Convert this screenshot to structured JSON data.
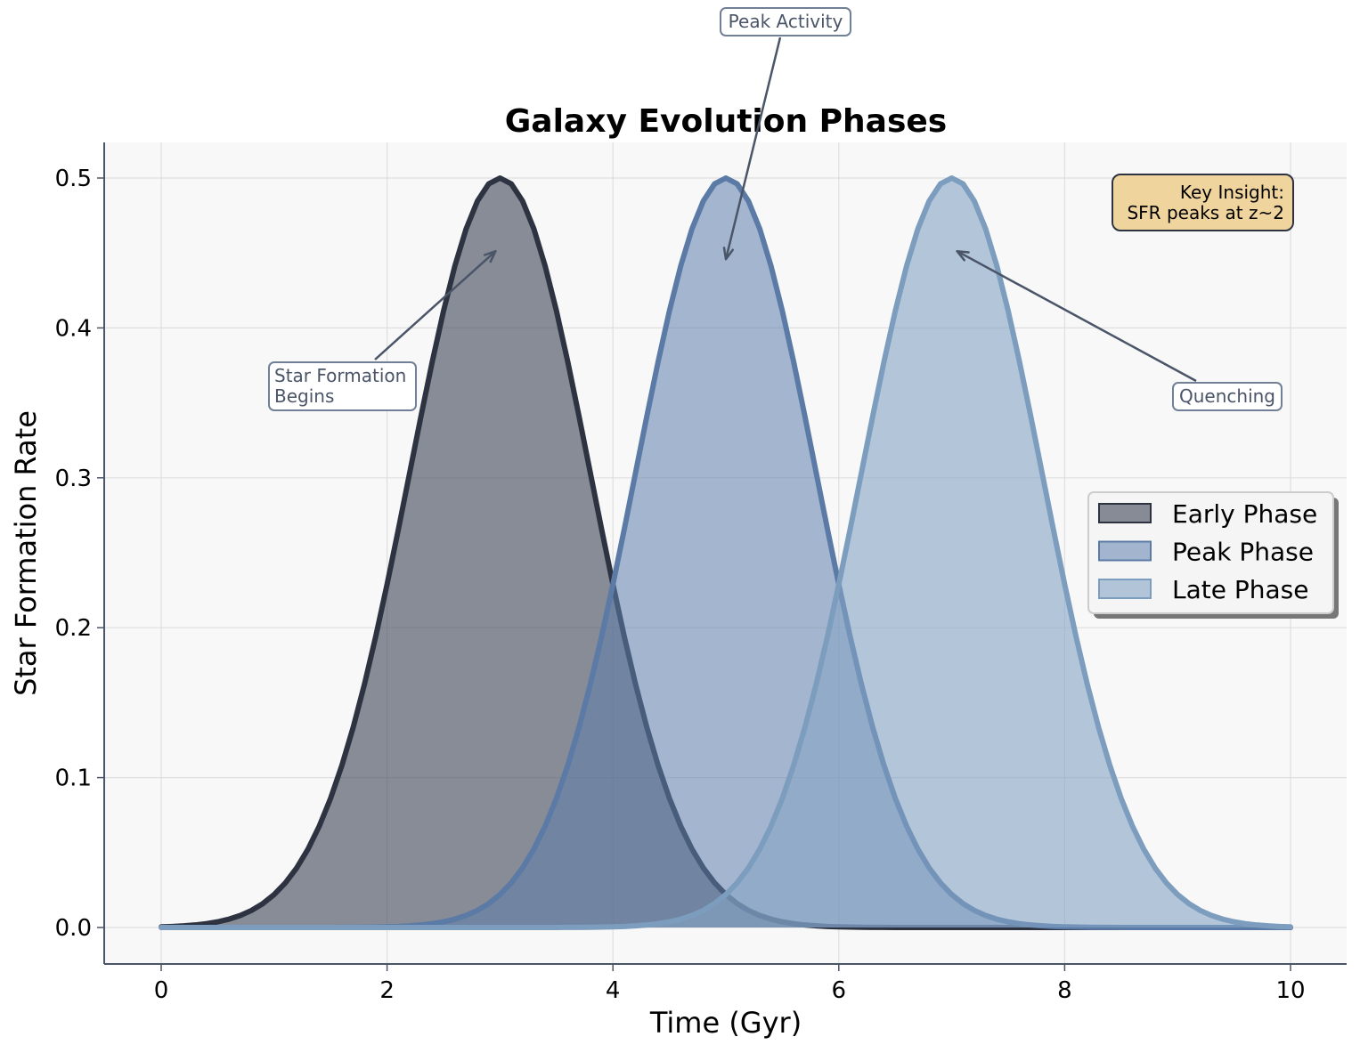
{
  "chart_data": {
    "type": "area",
    "title": "Galaxy Evolution Phases",
    "xlabel": "Time (Gyr)",
    "ylabel": "Star Formation Rate",
    "xlim": [
      -0.5,
      10.5
    ],
    "ylim": [
      -0.025,
      0.525
    ],
    "xticks": [
      0,
      2,
      4,
      6,
      8,
      10
    ],
    "yticks": [
      0.0,
      0.1,
      0.2,
      0.3,
      0.4,
      0.5
    ],
    "grid": true,
    "legend_position": "center-right",
    "series": [
      {
        "name": "Early Phase",
        "peak_x": 3,
        "peak_y": 0.5,
        "sigma": 0.8,
        "line_color": "#2d3340",
        "fill_color": "#4a5261",
        "fill_opacity": 0.65
      },
      {
        "name": "Peak Phase",
        "peak_x": 5,
        "peak_y": 0.5,
        "sigma": 0.8,
        "line_color": "#5b7aa6",
        "fill_color": "#5f80ad",
        "fill_opacity": 0.55
      },
      {
        "name": "Late Phase",
        "peak_x": 7,
        "peak_y": 0.5,
        "sigma": 0.8,
        "line_color": "#7d9dbe",
        "fill_color": "#86a3c4",
        "fill_opacity": 0.6
      }
    ],
    "annotations": [
      {
        "text": [
          "Star Formation",
          "Begins"
        ],
        "target": [
          3.0,
          0.45
        ],
        "text_anchor_point": [
          1.0,
          0.37
        ]
      },
      {
        "text": [
          "Peak Activity"
        ],
        "target": [
          5.0,
          0.45
        ],
        "text_anchor_point": [
          5.55,
          0.58
        ]
      },
      {
        "text": [
          "Quenching"
        ],
        "target": [
          7.0,
          0.45
        ],
        "text_anchor_point": [
          9.0,
          0.355
        ]
      }
    ],
    "insight": [
      "Key Insight:",
      "SFR peaks at z~2"
    ],
    "insight_color": "#f0d49e"
  }
}
